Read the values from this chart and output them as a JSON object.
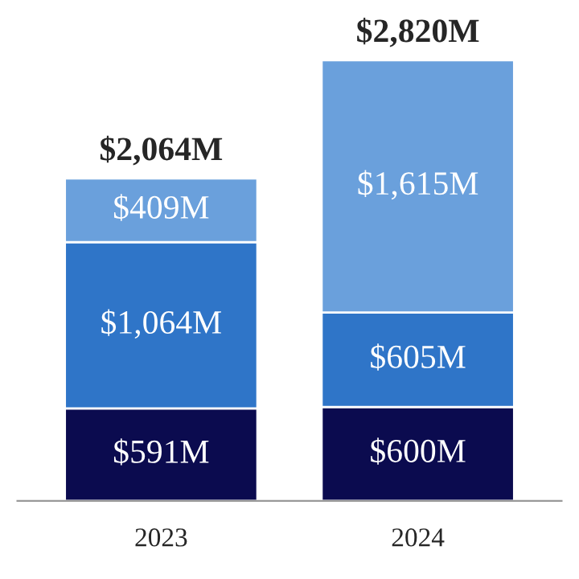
{
  "chart_data": {
    "type": "bar",
    "stacked": true,
    "categories": [
      "2023",
      "2024"
    ],
    "series": [
      {
        "color": "#0b0b4f",
        "values": [
          591,
          600
        ],
        "value_labels": [
          "$591M",
          "$600M"
        ]
      },
      {
        "color": "#2f75c8",
        "values": [
          1064,
          605
        ],
        "value_labels": [
          "$1,064M",
          "$605M"
        ]
      },
      {
        "color": "#6aa0dc",
        "values": [
          409,
          1615
        ],
        "value_labels": [
          "$409M",
          "$1,615M"
        ]
      }
    ],
    "totals": [
      "$2,064M",
      "$2,820M"
    ],
    "tick_labels": "x",
    "grid": false,
    "legend": false
  }
}
